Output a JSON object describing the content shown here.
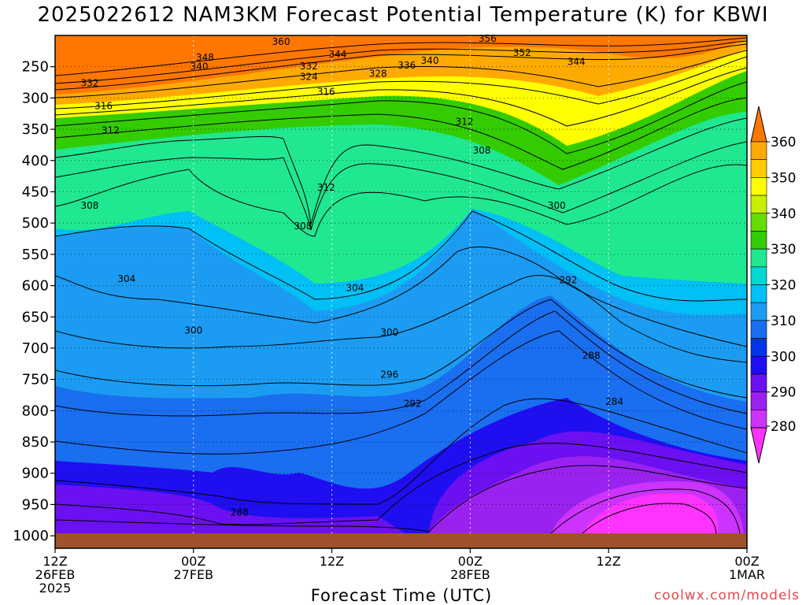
{
  "chart_data": {
    "type": "heatmap",
    "title": "2025022612 NAM3KM Forecast Potential Temperature (K) for KBWI",
    "xlabel": "Forecast Time (UTC)",
    "ylabel": "",
    "y_ticks": [
      250,
      300,
      350,
      400,
      450,
      500,
      550,
      600,
      650,
      700,
      750,
      800,
      850,
      900,
      950,
      1000
    ],
    "x_ticks": [
      {
        "hour": 0,
        "lines": [
          "12Z",
          "26FEB",
          "2025"
        ]
      },
      {
        "hour": 12,
        "lines": [
          "00Z",
          "27FEB"
        ]
      },
      {
        "hour": 24,
        "lines": [
          "12Z"
        ]
      },
      {
        "hour": 36,
        "lines": [
          "00Z",
          "28FEB"
        ]
      },
      {
        "hour": 48,
        "lines": [
          "12Z"
        ]
      },
      {
        "hour": 60,
        "lines": [
          "00Z",
          "1MAR"
        ]
      }
    ],
    "x_range_hours": [
      0,
      60
    ],
    "y_range_hpa": [
      200,
      1020
    ],
    "colorbar": {
      "levels": [
        280,
        290,
        300,
        310,
        320,
        330,
        340,
        350,
        360
      ],
      "labels": [
        "280",
        "290",
        "300",
        "310",
        "320",
        "330",
        "340",
        "350",
        "360"
      ],
      "colors": [
        "#ff33ff",
        "#cc33ff",
        "#9a22ee",
        "#6b10f0",
        "#1f0ff0",
        "#0033ee",
        "#1a6ef0",
        "#1b9cf2",
        "#00c0f5",
        "#00d8d0",
        "#20e890",
        "#33cc00",
        "#66dd00",
        "#c8ee00",
        "#ffff00",
        "#ffcc00",
        "#ffaa00",
        "#ff7700"
      ]
    },
    "contour_labels": [
      {
        "hour": 19.6,
        "hpa": 210,
        "label": "360"
      },
      {
        "hour": 37.5,
        "hpa": 205,
        "label": "356"
      },
      {
        "hour": 40.5,
        "hpa": 228,
        "label": "352"
      },
      {
        "hour": 13,
        "hpa": 235,
        "label": "348"
      },
      {
        "hour": 24.5,
        "hpa": 230,
        "label": "344"
      },
      {
        "hour": 45.2,
        "hpa": 242,
        "label": "344"
      },
      {
        "hour": 12.5,
        "hpa": 250,
        "label": "340"
      },
      {
        "hour": 32.5,
        "hpa": 240,
        "label": "340"
      },
      {
        "hour": 30.5,
        "hpa": 248,
        "label": "336"
      },
      {
        "hour": 22,
        "hpa": 249,
        "label": "332"
      },
      {
        "hour": 3,
        "hpa": 276,
        "label": "332"
      },
      {
        "hour": 28,
        "hpa": 261,
        "label": "328"
      },
      {
        "hour": 22,
        "hpa": 266,
        "label": "324"
      },
      {
        "hour": 23.5,
        "hpa": 290,
        "label": "316"
      },
      {
        "hour": 4.2,
        "hpa": 313,
        "label": "316"
      },
      {
        "hour": 4.8,
        "hpa": 352,
        "label": "312"
      },
      {
        "hour": 35.5,
        "hpa": 338,
        "label": "312"
      },
      {
        "hour": 23.5,
        "hpa": 443,
        "label": "312"
      },
      {
        "hour": 37,
        "hpa": 384,
        "label": "308"
      },
      {
        "hour": 21.5,
        "hpa": 505,
        "label": "308"
      },
      {
        "hour": 3,
        "hpa": 472,
        "label": "308"
      },
      {
        "hour": 43.5,
        "hpa": 472,
        "label": "300"
      },
      {
        "hour": 6.2,
        "hpa": 589,
        "label": "304"
      },
      {
        "hour": 26,
        "hpa": 604,
        "label": "304"
      },
      {
        "hour": 12,
        "hpa": 672,
        "label": "300"
      },
      {
        "hour": 29,
        "hpa": 675,
        "label": "300"
      },
      {
        "hour": 44.5,
        "hpa": 591,
        "label": "292"
      },
      {
        "hour": 29,
        "hpa": 742,
        "label": "296"
      },
      {
        "hour": 31,
        "hpa": 789,
        "label": "292"
      },
      {
        "hour": 46.5,
        "hpa": 712,
        "label": "288"
      },
      {
        "hour": 48.5,
        "hpa": 786,
        "label": "284"
      },
      {
        "hour": 16,
        "hpa": 963,
        "label": "288"
      }
    ]
  },
  "source_credit": "coolwx.com/models"
}
